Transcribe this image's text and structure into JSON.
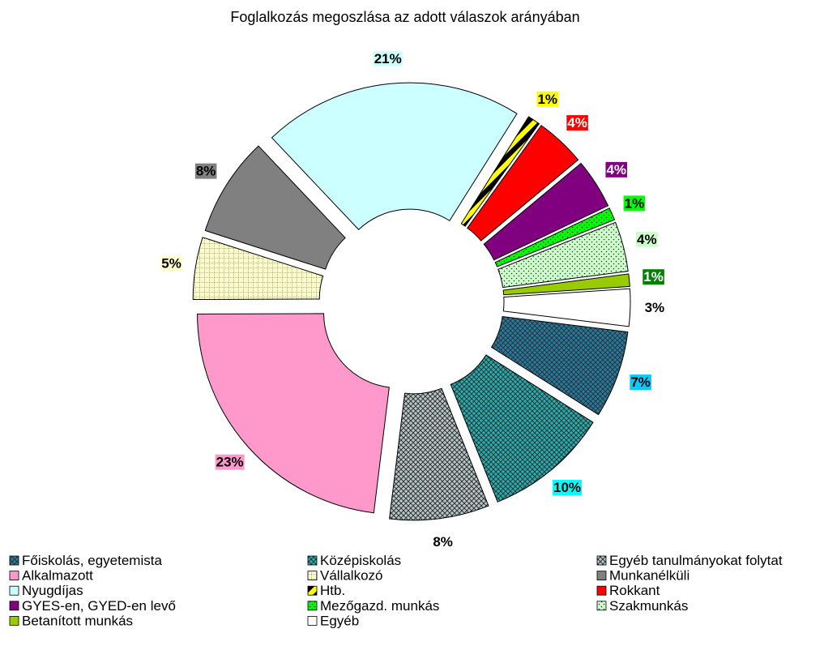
{
  "chart_data": {
    "type": "donut",
    "title": "Foglalkozás megoszlása az adott válaszok arányában",
    "categories": [
      "Főiskolás, egyetemista",
      "Középiskolás",
      "Egyéb tanulmányokat folytat",
      "Alkalmazott",
      "Vállalkozó",
      "Munkanélküli",
      "Nyugdíjas",
      "Htb.",
      "Rokkant",
      "GYES-en, GYED-en levő",
      "Mezőgazd. munkás",
      "Szakmunkás",
      "Betanított munkás",
      "Egyéb"
    ],
    "values": [
      7,
      10,
      8,
      23,
      5,
      8,
      21,
      1,
      4,
      4,
      1,
      4,
      1,
      3
    ],
    "value_labels": [
      "7%",
      "10%",
      "8%",
      "23%",
      "5%",
      "8%",
      "21%",
      "1%",
      "4%",
      "4%",
      "1%",
      "4%",
      "1%",
      "3%"
    ],
    "colors": [
      "#1e7ea6",
      "#1fb2b2",
      "#b8c8c8",
      "#ff99cc",
      "#ffffcc",
      "#808080",
      "#ccffff",
      "#ffff00",
      "#ff0000",
      "#800080",
      "#00ff00",
      "#ccffcc",
      "#99cc00",
      "#ffffff"
    ],
    "patterns": [
      "crosshatch",
      "crosshatch",
      "crosshatch",
      "solid",
      "grid",
      "solid",
      "solid",
      "stripes",
      "solid",
      "solid",
      "dots",
      "dots",
      "solid",
      "solid"
    ],
    "label_colors": [
      "#00ccff",
      "#00ffff",
      "#ffffff",
      "#ff99cc",
      "#ffffcc",
      "#808080",
      "#ccffff",
      "#ffff00",
      "#ff0000",
      "#800080",
      "#00ff00",
      "#ccffcc",
      "#008000",
      "#ffffff"
    ],
    "legend": "bottom"
  }
}
